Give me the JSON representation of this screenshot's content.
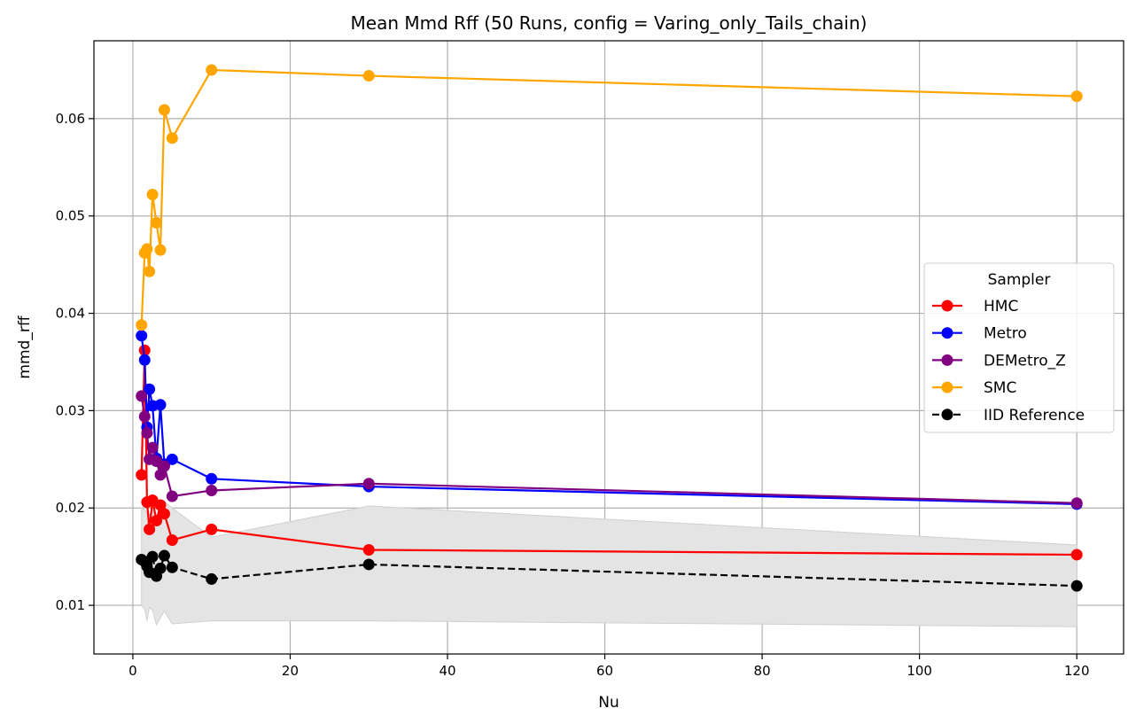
{
  "chart_data": {
    "type": "line",
    "title": "Mean Mmd Rff (50 Runs, config = Varing_only_Tails_chain)",
    "xlabel": "Nu",
    "ylabel": "mmd_rff",
    "xlim": [
      -4.95,
      125.95
    ],
    "ylim": [
      0.005,
      0.068
    ],
    "x_ticks": [
      0,
      20,
      40,
      60,
      80,
      100,
      120
    ],
    "x_tick_labels": [
      "0",
      "20",
      "40",
      "60",
      "80",
      "100",
      "120"
    ],
    "y_ticks": [
      0.01,
      0.02,
      0.03,
      0.04,
      0.05,
      0.06
    ],
    "y_tick_labels": [
      "0.01",
      "0.02",
      "0.03",
      "0.04",
      "0.05",
      "0.06"
    ],
    "grid": true,
    "legend": {
      "title": "Sampler",
      "placement": "center-right"
    },
    "x": [
      1.1,
      1.5,
      1.8,
      2.1,
      2.5,
      3.0,
      3.5,
      4.0,
      5.0,
      10,
      30,
      120
    ],
    "series": [
      {
        "name": "HMC",
        "color": "#ff0000",
        "dashed": false,
        "values": [
          0.0234,
          0.0362,
          0.0206,
          0.0178,
          0.0208,
          0.0187,
          0.0203,
          0.0194,
          0.0167,
          0.0178,
          0.0157,
          0.0152
        ]
      },
      {
        "name": "Metro",
        "color": "#0000ff",
        "dashed": false,
        "values": [
          0.0377,
          0.0352,
          0.0283,
          0.0322,
          0.0305,
          0.0251,
          0.0306,
          0.0245,
          0.025,
          0.023,
          0.0222,
          0.0204
        ]
      },
      {
        "name": "DEMetro_Z",
        "color": "#800080",
        "dashed": false,
        "values": [
          0.0315,
          0.0294,
          0.0277,
          0.025,
          0.0262,
          0.0248,
          0.0234,
          0.0243,
          0.0212,
          0.0218,
          0.0225,
          0.0205
        ]
      },
      {
        "name": "SMC",
        "color": "#ffa500",
        "dashed": false,
        "values": [
          0.0388,
          0.0462,
          0.0466,
          0.0443,
          0.0522,
          0.0493,
          0.0465,
          0.0609,
          0.058,
          0.065,
          0.0644,
          0.0623
        ]
      },
      {
        "name": "IID Reference",
        "color": "#000000",
        "dashed": true,
        "values": [
          0.0147,
          0.0145,
          0.014,
          0.0134,
          0.015,
          0.013,
          0.0138,
          0.0151,
          0.0139,
          0.0127,
          0.0142,
          0.012
        ]
      }
    ],
    "band": {
      "color": "#e4e4e4",
      "x": [
        1.1,
        1.5,
        1.8,
        2.1,
        2.5,
        3.0,
        3.5,
        4.0,
        5.0,
        10,
        30,
        120
      ],
      "lower": [
        0.01,
        0.0096,
        0.0084,
        0.0098,
        0.0095,
        0.008,
        0.0087,
        0.0094,
        0.0081,
        0.0084,
        0.0084,
        0.0078
      ],
      "upper": [
        0.02,
        0.0198,
        0.0195,
        0.0193,
        0.02,
        0.0185,
        0.0192,
        0.0207,
        0.02,
        0.017,
        0.0202,
        0.0162
      ]
    }
  }
}
